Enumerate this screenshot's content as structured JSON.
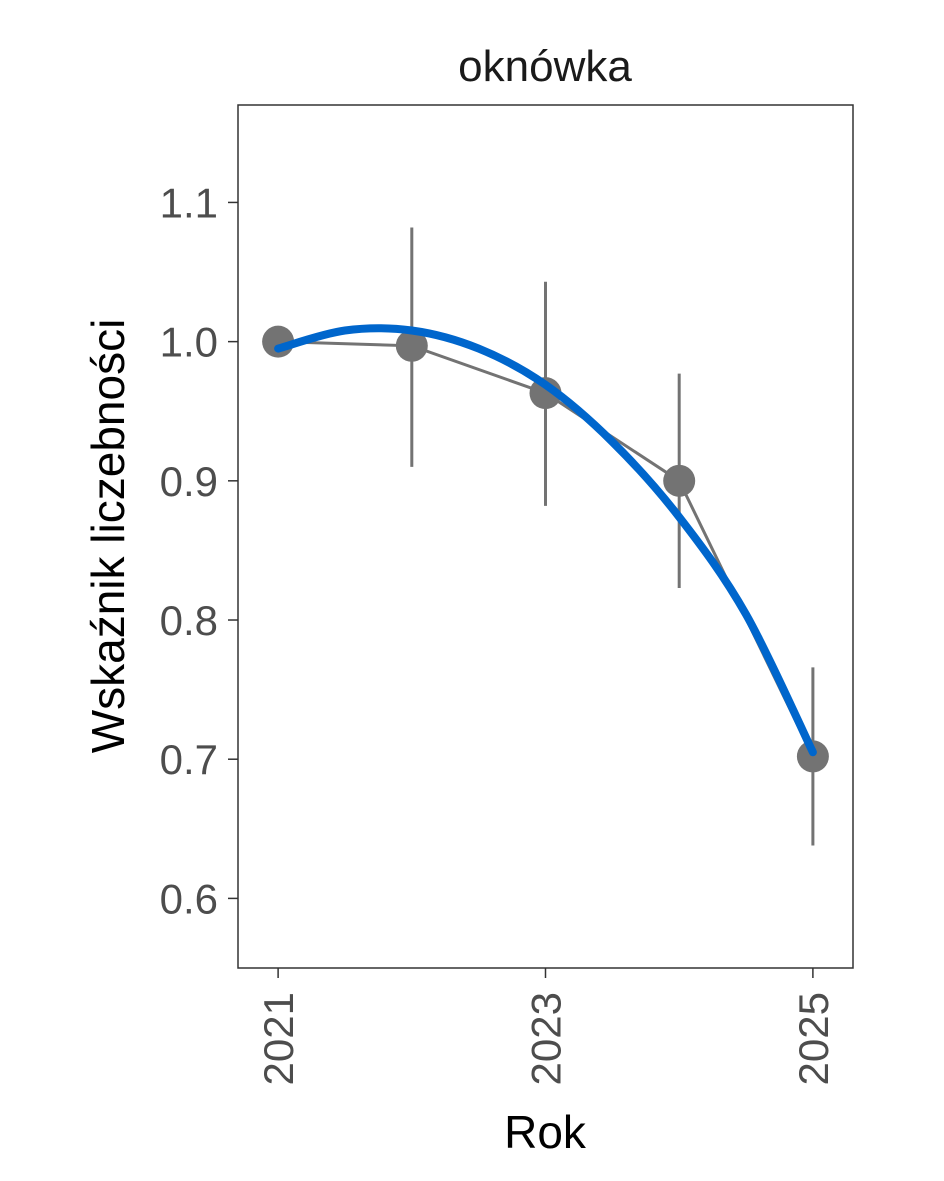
{
  "chart_data": {
    "type": "line",
    "title": "oknówka",
    "xlabel": "Rok",
    "ylabel": "Wskaźnik liczebności",
    "xlim": [
      2020.7,
      2025.3
    ],
    "ylim": [
      0.55,
      1.17
    ],
    "x_ticks": [
      "2021",
      "2023",
      "2025"
    ],
    "y_ticks": [
      "0.6",
      "0.7",
      "0.8",
      "0.9",
      "1.0",
      "1.1"
    ],
    "grid": false,
    "legend": "none",
    "series": [
      {
        "x": [
          2021,
          2022,
          2023,
          2024,
          2025
        ],
        "y": [
          1.0,
          0.997,
          0.963,
          0.9,
          0.702
        ],
        "lower": [
          1.0,
          0.91,
          0.882,
          0.823,
          0.638
        ],
        "upper": [
          1.0,
          1.082,
          1.043,
          0.977,
          0.766
        ],
        "color": "#737373"
      }
    ],
    "trend": {
      "type": "quadratic",
      "x": [
        2021,
        2021.5,
        2022,
        2022.5,
        2023,
        2023.5,
        2024,
        2024.5,
        2025
      ],
      "y": [
        0.995,
        1.008,
        1.008,
        0.995,
        0.969,
        0.928,
        0.874,
        0.804,
        0.705
      ],
      "color": "#0066cc"
    }
  }
}
